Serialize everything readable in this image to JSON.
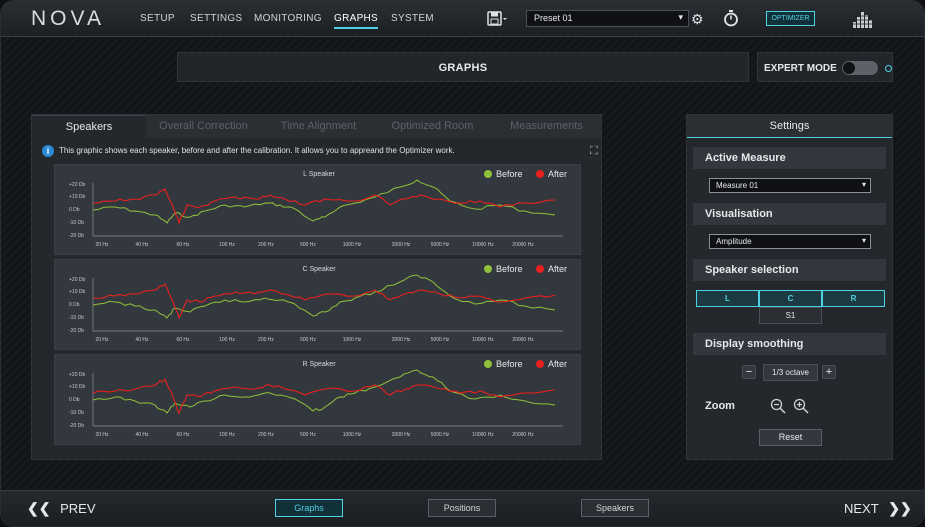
{
  "app": {
    "logo": "NOVA"
  },
  "nav": {
    "items": [
      "SETUP",
      "SETTINGS",
      "MONITORING",
      "GRAPHS",
      "SYSTEM"
    ],
    "active": "GRAPHS"
  },
  "toolbar": {
    "preset_value": "Preset 01",
    "optimizer_label": "OPTIMIZER"
  },
  "header": {
    "title": "GRAPHS",
    "expert_mode_label": "EXPERT MODE",
    "expert_mode_on": false
  },
  "tabs": {
    "items": [
      "Speakers",
      "Overall Correction",
      "Time Alignment",
      "Optimized Room",
      "Measurements"
    ],
    "active": "Speakers"
  },
  "info": {
    "text": "This graphic shows each speaker, before and after the calibration. It allows you to appreand the Optimizer work."
  },
  "graphs": {
    "y_ticks": [
      "+20 Db",
      "+10 Db",
      "0 Db",
      "-10 Db",
      "-20 Db"
    ],
    "x_ticks": [
      "20 Hz",
      "40 Hz",
      "60 Hz",
      "100 Hz",
      "200 Hz",
      "500 Hz",
      "1000 Hz",
      "2000 Hz",
      "5000 Hz",
      "10000 Hz",
      "20000 Hz"
    ],
    "legend_before": "Before",
    "legend_after": "After",
    "before_color": "#8fc23a",
    "after_color": "#e8201e",
    "speakers": [
      {
        "title": "L Speaker"
      },
      {
        "title": "C Speaker"
      },
      {
        "title": "R Speaker"
      }
    ]
  },
  "settings": {
    "title": "Settings",
    "active_measure_label": "Active Measure",
    "active_measure_value": "Measure 01",
    "visualisation_label": "Visualisation",
    "visualisation_value": "Amplitude",
    "speaker_selection_label": "Speaker selection",
    "speaker_buttons": [
      "L",
      "C",
      "R"
    ],
    "sub_button": "S1",
    "display_smoothing_label": "Display smoothing",
    "smoothing_value": "1/3 octave",
    "zoom_label": "Zoom",
    "reset_label": "Reset"
  },
  "footer": {
    "prev_label": "PREV",
    "next_label": "NEXT",
    "buttons": [
      "Graphs",
      "Positions",
      "Speakers"
    ],
    "active": "Graphs"
  },
  "colors": {
    "accent": "#4fd1e4",
    "before": "#8fc23a",
    "after": "#e8201e"
  }
}
